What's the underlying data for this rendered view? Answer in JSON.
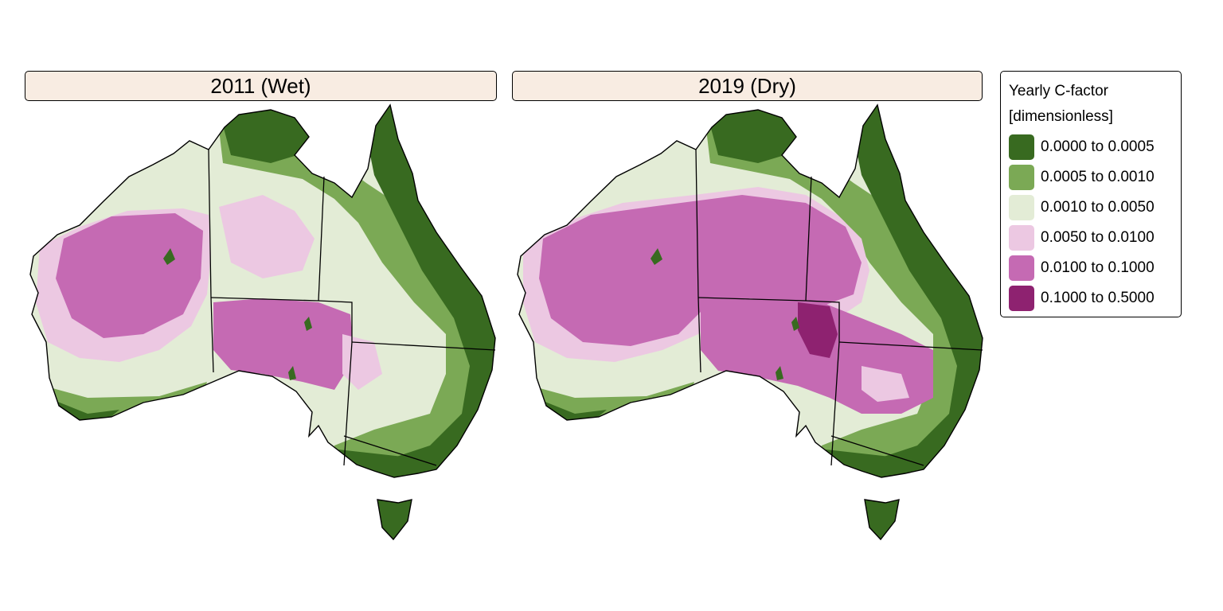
{
  "panels": [
    {
      "title": "2011 (Wet)",
      "pattern": "wet"
    },
    {
      "title": "2019 (Dry)",
      "pattern": "dry"
    }
  ],
  "legend": {
    "title_line1": "Yearly C-factor",
    "title_line2": "[dimensionless]",
    "classes": [
      {
        "label": "0.0000 to 0.0005",
        "color": "#386a20"
      },
      {
        "label": "0.0005 to 0.0010",
        "color": "#7ba955"
      },
      {
        "label": "0.0010 to 0.0050",
        "color": "#e3ecd6"
      },
      {
        "label": "0.0050 to 0.0100",
        "color": "#ecc8e2"
      },
      {
        "label": "0.0100 to 0.1000",
        "color": "#c56ab3"
      },
      {
        "label": "0.1000 to 0.5000",
        "color": "#8e2270"
      }
    ]
  }
}
